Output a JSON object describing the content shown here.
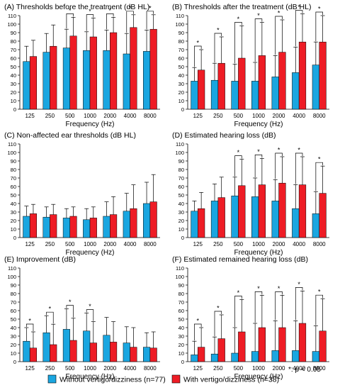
{
  "colors": {
    "without": "#1aa6e0",
    "with": "#ee1c25"
  },
  "legend": {
    "without": "Without vertigo/dizziness (n=77)",
    "with": "With vertigo/dizziness (n=38)",
    "sig_note": "*: p < 0.05"
  },
  "chart_data": [
    {
      "id": "A",
      "type": "bar",
      "title": "(A) Thresholds before the treatment (dB HL)",
      "xlabel": "Frequency (Hz)",
      "ylabel": "",
      "ylim": [
        0,
        110
      ],
      "yticks": [
        0,
        10,
        20,
        30,
        40,
        50,
        60,
        70,
        80,
        90,
        100,
        110
      ],
      "categories": [
        "125",
        "250",
        "500",
        "1000",
        "2000",
        "4000",
        "8000"
      ],
      "series": [
        {
          "name": "Without vertigo/dizziness (n=77)",
          "values": [
            56,
            67,
            72,
            69,
            69,
            65,
            68
          ],
          "errors": [
            18,
            22,
            22,
            22,
            24,
            24,
            25
          ]
        },
        {
          "name": "With vertigo/dizziness (n=38)",
          "values": [
            62,
            74,
            86,
            85,
            90,
            96,
            94
          ],
          "errors": [
            19,
            25,
            22,
            22,
            18,
            15,
            17
          ]
        }
      ],
      "significant": [
        false,
        false,
        true,
        true,
        true,
        true,
        true
      ]
    },
    {
      "id": "B",
      "type": "bar",
      "title": "(B) Thresholds after the treatment (dB HL)",
      "xlabel": "Frequency (Hz)",
      "ylabel": "",
      "ylim": [
        0,
        110
      ],
      "yticks": [
        0,
        10,
        20,
        30,
        40,
        50,
        60,
        70,
        80,
        90,
        100,
        110
      ],
      "categories": [
        "125",
        "250",
        "500",
        "1000",
        "2000",
        "4000",
        "8000"
      ],
      "series": [
        {
          "name": "Without vertigo/dizziness (n=77)",
          "values": [
            33,
            34,
            33,
            33,
            38,
            43,
            52
          ],
          "errors": [
            16,
            20,
            20,
            22,
            25,
            30,
            27
          ]
        },
        {
          "name": "With vertigo/dizziness (n=38)",
          "values": [
            46,
            54,
            60,
            63,
            67,
            79,
            79
          ],
          "errors": [
            24,
            31,
            38,
            39,
            38,
            33,
            31
          ]
        }
      ],
      "significant": [
        true,
        true,
        true,
        true,
        true,
        true,
        true
      ]
    },
    {
      "id": "C",
      "type": "bar",
      "title": "(C) Non-affected ear thresholds (dB HL)",
      "xlabel": "Frequency (Hz)",
      "ylabel": "",
      "ylim": [
        0,
        110
      ],
      "yticks": [
        0,
        10,
        20,
        30,
        40,
        50,
        60,
        70,
        80,
        90,
        100,
        110
      ],
      "categories": [
        "125",
        "250",
        "500",
        "1000",
        "2000",
        "4000",
        "8000"
      ],
      "series": [
        {
          "name": "Without vertigo/dizziness (n=77)",
          "values": [
            25,
            24,
            23,
            21,
            25,
            31,
            40
          ],
          "errors": [
            12,
            12,
            11,
            13,
            17,
            21,
            25
          ]
        },
        {
          "name": "With vertigo/dizziness (n=38)",
          "values": [
            28,
            27,
            25,
            23,
            27,
            34,
            42
          ],
          "errors": [
            11,
            12,
            11,
            13,
            21,
            28,
            32
          ]
        }
      ],
      "significant": [
        false,
        false,
        false,
        false,
        false,
        false,
        false
      ]
    },
    {
      "id": "D",
      "type": "bar",
      "title": "(D) Estimated hearing loss (dB)",
      "xlabel": "Frequency (Hz)",
      "ylabel": "",
      "ylim": [
        0,
        110
      ],
      "yticks": [
        0,
        10,
        20,
        30,
        40,
        50,
        60,
        70,
        80,
        90,
        100,
        110
      ],
      "categories": [
        "125",
        "250",
        "500",
        "1000",
        "2000",
        "4000",
        "8000"
      ],
      "series": [
        {
          "name": "Without vertigo/dizziness (n=77)",
          "values": [
            31,
            43,
            49,
            48,
            43,
            34,
            28
          ],
          "errors": [
            12,
            20,
            22,
            22,
            25,
            28,
            26
          ]
        },
        {
          "name": "With vertigo/dizziness (n=38)",
          "values": [
            34,
            47,
            61,
            62,
            64,
            62,
            52
          ],
          "errors": [
            19,
            24,
            31,
            31,
            31,
            33,
            32
          ]
        }
      ],
      "significant": [
        false,
        false,
        true,
        true,
        true,
        true,
        true
      ]
    },
    {
      "id": "E",
      "type": "bar",
      "title": "(E) Improvement (dB)",
      "xlabel": "Frequency (Hz)",
      "ylabel": "",
      "ylim": [
        0,
        110
      ],
      "yticks": [
        0,
        10,
        20,
        30,
        40,
        50,
        60,
        70,
        80,
        90,
        100,
        110
      ],
      "categories": [
        "125",
        "250",
        "500",
        "1000",
        "2000",
        "4000",
        "8000"
      ],
      "series": [
        {
          "name": "Without vertigo/dizziness (n=77)",
          "values": [
            24,
            34,
            38,
            36,
            31,
            22,
            17
          ],
          "errors": [
            16,
            20,
            24,
            21,
            21,
            19,
            17
          ]
        },
        {
          "name": "With vertigo/dizziness (n=38)",
          "values": [
            16,
            20,
            25,
            22,
            23,
            17,
            16
          ],
          "errors": [
            19,
            24,
            26,
            25,
            24,
            23,
            19
          ]
        }
      ],
      "significant": [
        true,
        true,
        true,
        true,
        false,
        false,
        false
      ]
    },
    {
      "id": "F",
      "type": "bar",
      "title": "(F) Estimated remained hearing loss (dB)",
      "xlabel": "Frequency (Hz)",
      "ylabel": "",
      "ylim": [
        0,
        110
      ],
      "yticks": [
        0,
        10,
        20,
        30,
        40,
        50,
        60,
        70,
        80,
        90,
        100,
        110
      ],
      "categories": [
        "125",
        "250",
        "500",
        "1000",
        "2000",
        "4000",
        "8000"
      ],
      "series": [
        {
          "name": "Without vertigo/dizziness (n=77)",
          "values": [
            8,
            9,
            10,
            12,
            13,
            13,
            12
          ],
          "errors": [
            16,
            20,
            30,
            33,
            35,
            35,
            30
          ]
        },
        {
          "name": "With vertigo/dizziness (n=38)",
          "values": [
            17,
            27,
            35,
            40,
            40,
            45,
            36
          ],
          "errors": [
            23,
            28,
            38,
            38,
            38,
            38,
            38
          ]
        }
      ],
      "significant": [
        true,
        true,
        true,
        true,
        true,
        true,
        true
      ]
    }
  ]
}
